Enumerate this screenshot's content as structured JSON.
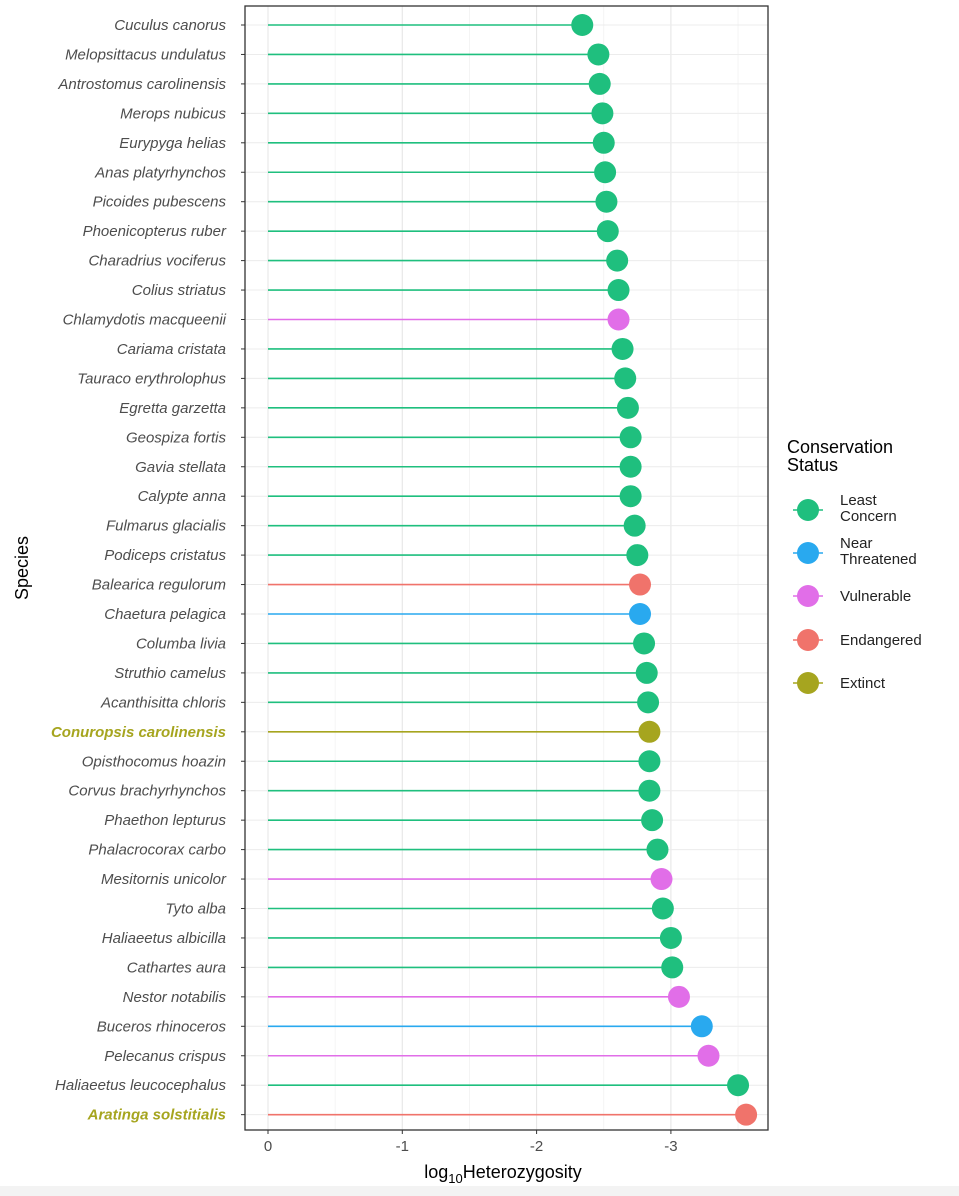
{
  "chart_data": {
    "type": "lollipop",
    "xlabel_main": "log",
    "xlabel_sub": "10",
    "xlabel_rest": "Heterozygosity",
    "ylabel": "Species",
    "x_ticks": [
      "0",
      "-1",
      "-2",
      "-3"
    ],
    "x_tick_values": [
      0,
      -1,
      -2,
      -3
    ],
    "xlim": [
      0.18,
      -3.72
    ],
    "grid": true,
    "legend": {
      "title_line1": "Conservation",
      "title_line2": "Status",
      "placement": "right",
      "entries": [
        {
          "key": "least_concern",
          "line1": "Least",
          "line2": "Concern",
          "color": "#1fbf7e"
        },
        {
          "key": "near_threatened",
          "line1": "Near",
          "line2": "Threatened",
          "color": "#29a9ef"
        },
        {
          "key": "vulnerable",
          "line1": "Vulnerable",
          "line2": "",
          "color": "#e16ee8"
        },
        {
          "key": "endangered",
          "line1": "Endangered",
          "line2": "",
          "color": "#f0736b"
        },
        {
          "key": "extinct",
          "line1": "Extinct",
          "line2": "",
          "color": "#a6a51f"
        }
      ]
    },
    "species": [
      {
        "name": "Cuculus canorus",
        "value": -2.34,
        "status": "least_concern",
        "highlight": false
      },
      {
        "name": "Melopsittacus undulatus",
        "value": -2.46,
        "status": "least_concern",
        "highlight": false
      },
      {
        "name": "Antrostomus carolinensis",
        "value": -2.47,
        "status": "least_concern",
        "highlight": false
      },
      {
        "name": "Merops nubicus",
        "value": -2.49,
        "status": "least_concern",
        "highlight": false
      },
      {
        "name": "Eurypyga helias",
        "value": -2.5,
        "status": "least_concern",
        "highlight": false
      },
      {
        "name": "Anas platyrhynchos",
        "value": -2.51,
        "status": "least_concern",
        "highlight": false
      },
      {
        "name": "Picoides pubescens",
        "value": -2.52,
        "status": "least_concern",
        "highlight": false
      },
      {
        "name": "Phoenicopterus ruber",
        "value": -2.53,
        "status": "least_concern",
        "highlight": false
      },
      {
        "name": "Charadrius vociferus",
        "value": -2.6,
        "status": "least_concern",
        "highlight": false
      },
      {
        "name": "Colius striatus",
        "value": -2.61,
        "status": "least_concern",
        "highlight": false
      },
      {
        "name": "Chlamydotis macqueenii",
        "value": -2.61,
        "status": "vulnerable",
        "highlight": false
      },
      {
        "name": "Cariama cristata",
        "value": -2.64,
        "status": "least_concern",
        "highlight": false
      },
      {
        "name": "Tauraco erythrolophus",
        "value": -2.66,
        "status": "least_concern",
        "highlight": false
      },
      {
        "name": "Egretta garzetta",
        "value": -2.68,
        "status": "least_concern",
        "highlight": false
      },
      {
        "name": "Geospiza fortis",
        "value": -2.7,
        "status": "least_concern",
        "highlight": false
      },
      {
        "name": "Gavia stellata",
        "value": -2.7,
        "status": "least_concern",
        "highlight": false
      },
      {
        "name": "Calypte anna",
        "value": -2.7,
        "status": "least_concern",
        "highlight": false
      },
      {
        "name": "Fulmarus glacialis",
        "value": -2.73,
        "status": "least_concern",
        "highlight": false
      },
      {
        "name": "Podiceps cristatus",
        "value": -2.75,
        "status": "least_concern",
        "highlight": false
      },
      {
        "name": "Balearica regulorum",
        "value": -2.77,
        "status": "endangered",
        "highlight": false
      },
      {
        "name": "Chaetura pelagica",
        "value": -2.77,
        "status": "near_threatened",
        "highlight": false
      },
      {
        "name": "Columba livia",
        "value": -2.8,
        "status": "least_concern",
        "highlight": false
      },
      {
        "name": "Struthio camelus",
        "value": -2.82,
        "status": "least_concern",
        "highlight": false
      },
      {
        "name": "Acanthisitta chloris",
        "value": -2.83,
        "status": "least_concern",
        "highlight": false
      },
      {
        "name": "Conuropsis carolinensis",
        "value": -2.84,
        "status": "extinct",
        "highlight": true
      },
      {
        "name": "Opisthocomus hoazin",
        "value": -2.84,
        "status": "least_concern",
        "highlight": false
      },
      {
        "name": "Corvus brachyrhynchos",
        "value": -2.84,
        "status": "least_concern",
        "highlight": false
      },
      {
        "name": "Phaethon lepturus",
        "value": -2.86,
        "status": "least_concern",
        "highlight": false
      },
      {
        "name": "Phalacrocorax carbo",
        "value": -2.9,
        "status": "least_concern",
        "highlight": false
      },
      {
        "name": "Mesitornis unicolor",
        "value": -2.93,
        "status": "vulnerable",
        "highlight": false
      },
      {
        "name": "Tyto alba",
        "value": -2.94,
        "status": "least_concern",
        "highlight": false
      },
      {
        "name": "Haliaeetus albicilla",
        "value": -3.0,
        "status": "least_concern",
        "highlight": false
      },
      {
        "name": "Cathartes aura",
        "value": -3.01,
        "status": "least_concern",
        "highlight": false
      },
      {
        "name": "Nestor notabilis",
        "value": -3.06,
        "status": "vulnerable",
        "highlight": false
      },
      {
        "name": "Buceros rhinoceros",
        "value": -3.23,
        "status": "near_threatened",
        "highlight": false
      },
      {
        "name": "Pelecanus crispus",
        "value": -3.28,
        "status": "vulnerable",
        "highlight": false
      },
      {
        "name": "Haliaeetus leucocephalus",
        "value": -3.5,
        "status": "least_concern",
        "highlight": false
      },
      {
        "name": "Aratinga solstitialis",
        "value": -3.56,
        "status": "endangered",
        "highlight": true
      }
    ]
  }
}
